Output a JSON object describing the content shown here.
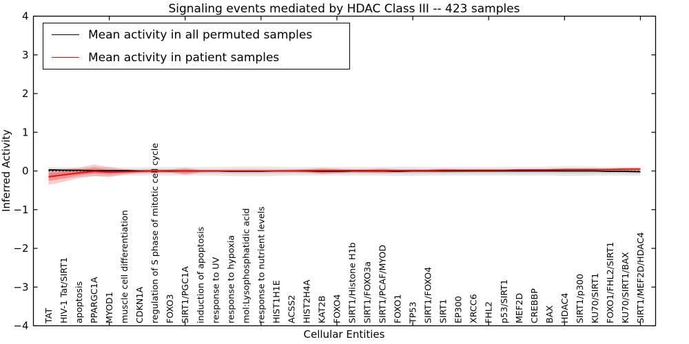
{
  "chart_data": {
    "type": "line",
    "title": "Signaling events mediated by HDAC Class III -- 423 samples",
    "xlabel": "Cellular Entities",
    "ylabel": "Inferred Activity",
    "ylim": [
      -4,
      4
    ],
    "yticks": [
      4,
      3,
      2,
      1,
      0,
      -1,
      -2,
      -3,
      -4
    ],
    "x_range": [
      0,
      41
    ],
    "xticks_positions": [
      5,
      10,
      15,
      20,
      25,
      30,
      35,
      40
    ],
    "grid": false,
    "legend_position": "upper left",
    "zero_line": {
      "style": "dashed",
      "color": "#000000"
    },
    "colors": {
      "permuted": "#000000",
      "patient": "#ff0000",
      "background": "#ffffff"
    },
    "categories": [
      "TAT",
      "HIV-1 Tat/SIRT1",
      "apoptosis",
      "PPARGC1A",
      "MYOD1",
      "muscle cell differentiation",
      "CDKN1A",
      "regulation of S phase of mitotic cell cycle",
      "FOXO3",
      "SIRT1/PGC1A",
      "induction of apoptosis",
      "response to UV",
      "response to hypoxia",
      "mol:Lysophosphatidic acid",
      "response to nutrient levels",
      "HIST1H1E",
      "ACSS2",
      "HIST2H4A",
      "KAT2B",
      "FOXO4",
      "SIRT1/Histone H1b",
      "SIRT1/FOXO3a",
      "SIRT1/PCAF/MYOD",
      "FOXO1",
      "TP53",
      "SIRT1/FOXO4",
      "SIRT1",
      "EP300",
      "XRCC6",
      "FHL2",
      "p53/SIRT1",
      "MEF2D",
      "CREBBP",
      "BAX",
      "HDAC4",
      "SIRT1/p300",
      "KU70/SIRT1",
      "FOXO1/FHL2/SIRT1",
      "KU70/SIRT1/BAX",
      "SIRT1/MEF2D/HDAC4"
    ],
    "series": [
      {
        "name": "Mean activity in all permuted samples",
        "color": "#000000",
        "values": [
          0.03,
          0.02,
          0.02,
          0.01,
          0.01,
          0.01,
          0.0,
          0.0,
          0.0,
          0.0,
          0.0,
          0.0,
          -0.01,
          -0.01,
          -0.01,
          0.0,
          0.0,
          0.0,
          -0.01,
          -0.01,
          0.0,
          0.0,
          0.0,
          -0.01,
          0.0,
          0.0,
          0.0,
          0.0,
          0.0,
          0.0,
          0.0,
          0.0,
          0.0,
          0.0,
          0.0,
          0.0,
          0.0,
          -0.01,
          -0.01,
          -0.02
        ]
      },
      {
        "name": "Mean activity in patient samples",
        "color": "#ff0000",
        "values": [
          -0.15,
          -0.1,
          -0.05,
          -0.01,
          -0.03,
          -0.02,
          -0.01,
          0.0,
          -0.01,
          0.0,
          0.0,
          0.0,
          0.0,
          0.0,
          0.0,
          0.0,
          0.0,
          0.01,
          0.01,
          0.01,
          0.01,
          0.01,
          0.01,
          0.01,
          0.01,
          0.01,
          0.02,
          0.02,
          0.02,
          0.02,
          0.02,
          0.03,
          0.03,
          0.03,
          0.04,
          0.04,
          0.04,
          0.04,
          0.05,
          0.05
        ]
      }
    ],
    "bands": [
      {
        "name": "permuted-activity-range",
        "color": "#000000",
        "opacity": 0.09,
        "upper": [
          0.1,
          0.09,
          0.09,
          0.1,
          0.1,
          0.09,
          0.09,
          0.1,
          0.1,
          0.1,
          0.1,
          0.1,
          0.11,
          0.12,
          0.12,
          0.11,
          0.1,
          0.1,
          0.1,
          0.1,
          0.1,
          0.1,
          0.1,
          0.11,
          0.11,
          0.1,
          0.1,
          0.1,
          0.1,
          0.1,
          0.1,
          0.1,
          0.11,
          0.11,
          0.12,
          0.12,
          0.11,
          0.1,
          0.1,
          0.1
        ],
        "lower": [
          -0.25,
          -0.2,
          -0.16,
          -0.14,
          -0.13,
          -0.12,
          -0.12,
          -0.12,
          -0.12,
          -0.12,
          -0.12,
          -0.12,
          -0.13,
          -0.14,
          -0.14,
          -0.13,
          -0.12,
          -0.12,
          -0.12,
          -0.12,
          -0.12,
          -0.12,
          -0.12,
          -0.13,
          -0.13,
          -0.12,
          -0.12,
          -0.12,
          -0.12,
          -0.12,
          -0.12,
          -0.12,
          -0.12,
          -0.12,
          -0.13,
          -0.13,
          -0.12,
          -0.12,
          -0.12,
          -0.12
        ]
      },
      {
        "name": "patient-activity-range",
        "color": "#ff0000",
        "opacity": 0.2,
        "upper": [
          0.05,
          0.06,
          0.08,
          0.17,
          0.1,
          0.05,
          0.03,
          0.04,
          0.04,
          0.08,
          0.03,
          0.03,
          0.03,
          0.03,
          0.03,
          0.03,
          0.04,
          0.05,
          0.08,
          0.06,
          0.04,
          0.05,
          0.07,
          0.04,
          0.04,
          0.04,
          0.06,
          0.04,
          0.04,
          0.04,
          0.04,
          0.04,
          0.04,
          0.05,
          0.05,
          0.05,
          0.05,
          0.06,
          0.06,
          0.07
        ],
        "lower": [
          -0.36,
          -0.28,
          -0.18,
          -0.13,
          -0.16,
          -0.09,
          -0.05,
          -0.05,
          -0.04,
          -0.1,
          -0.04,
          -0.03,
          -0.03,
          -0.03,
          -0.03,
          -0.03,
          -0.03,
          -0.04,
          -0.08,
          -0.06,
          -0.04,
          -0.05,
          -0.06,
          -0.04,
          -0.03,
          -0.03,
          -0.04,
          -0.03,
          -0.02,
          -0.02,
          -0.02,
          -0.01,
          -0.01,
          -0.01,
          -0.01,
          0.0,
          0.0,
          0.01,
          0.01,
          0.02
        ]
      }
    ]
  }
}
